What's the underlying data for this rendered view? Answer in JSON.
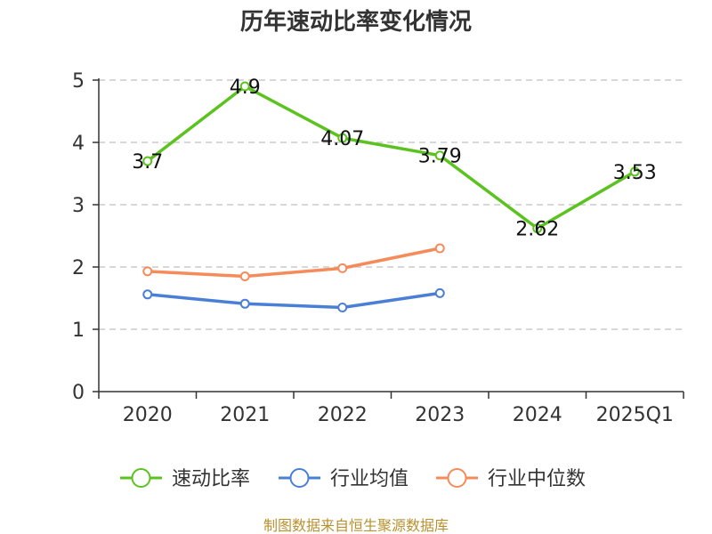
{
  "chart_data": {
    "type": "line",
    "title": "历年速动比率变化情况",
    "categories": [
      "2020",
      "2021",
      "2022",
      "2023",
      "2024",
      "2025Q1"
    ],
    "ylim": [
      0,
      5
    ],
    "yticks": [
      0,
      1,
      2,
      3,
      4,
      5
    ],
    "grid": true,
    "legend_position": "bottom",
    "series": [
      {
        "name": "速动比率",
        "color": "#5bc21f",
        "values": [
          3.7,
          4.9,
          4.07,
          3.79,
          2.62,
          3.53
        ],
        "labels": [
          "3.7",
          "4.9",
          "4.07",
          "3.79",
          "2.62",
          "3.53"
        ]
      },
      {
        "name": "行业均值",
        "color": "#4a7fd6",
        "values": [
          1.56,
          1.41,
          1.35,
          1.58,
          null,
          null
        ]
      },
      {
        "name": "行业中位数",
        "color": "#f58b5b",
        "values": [
          1.93,
          1.85,
          1.98,
          2.3,
          null,
          null
        ]
      }
    ],
    "source": "制图数据来自恒生聚源数据库"
  }
}
